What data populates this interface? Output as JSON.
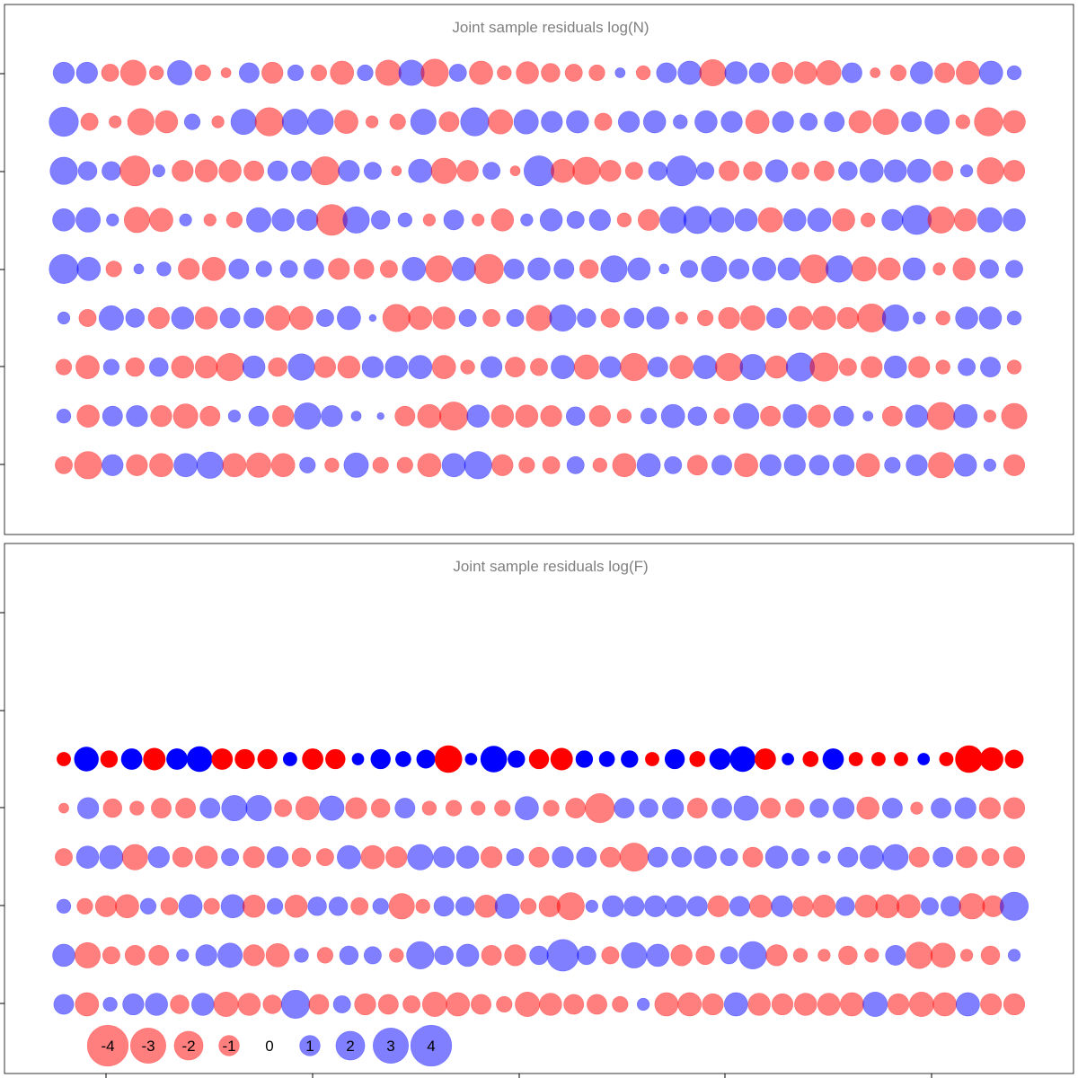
{
  "chart_data": {
    "type": "scatter",
    "description_type": "bubble residual plot",
    "colors": {
      "negative": "#ff0000",
      "positive": "#0000ff",
      "zero_label": "#000000"
    },
    "panels": [
      {
        "title": "Joint sample residuals log(N)",
        "fill_opacity": 0.5,
        "n_columns": 47,
        "rows": [
          [
            0.9,
            0.9,
            -0.6,
            -1.3,
            -0.4,
            1.2,
            -0.5,
            -0.2,
            0.8,
            -0.9,
            0.5,
            -0.5,
            -1.1,
            0.5,
            -1.3,
            1.3,
            -1.5,
            0.6,
            -1.1,
            -0.4,
            -1.0,
            -0.7,
            -0.6,
            -0.5,
            0.2,
            -0.4,
            0.8,
            1.1,
            -1.4,
            1.0,
            0.8,
            -0.9,
            -1.0,
            -1.2,
            0.8,
            -0.2,
            -0.5,
            1.0,
            -0.8,
            -1.1,
            1.1,
            0.4
          ],
          [
            1.7,
            -0.6,
            -0.3,
            -1.4,
            -1.0,
            0.5,
            -0.3,
            1.3,
            -1.6,
            1.3,
            1.3,
            -1.1,
            -0.3,
            -0.5,
            1.3,
            -0.8,
            1.6,
            -1.2,
            1.2,
            0.9,
            1.0,
            -0.6,
            0.9,
            1.0,
            0.4,
            1.0,
            0.9,
            -1.1,
            0.9,
            0.6,
            0.8,
            -1.0,
            -1.3,
            0.8,
            1.2,
            -0.4,
            -1.6,
            -1.0
          ],
          [
            1.5,
            0.7,
            0.7,
            -1.8,
            0.3,
            -0.9,
            -1.0,
            -1.0,
            -0.8,
            0.8,
            0.8,
            -1.6,
            0.9,
            0.6,
            -0.2,
            1.1,
            -1.3,
            -0.9,
            0.6,
            -0.2,
            1.8,
            -1.1,
            -1.5,
            -0.9,
            -0.6,
            0.7,
            1.8,
            0.6,
            -0.8,
            -0.7,
            1.0,
            -0.6,
            -0.8,
            0.7,
            1.1,
            1.0,
            1.1,
            -0.8,
            0.3,
            -1.4,
            -0.9
          ],
          [
            1.0,
            1.2,
            0.3,
            -1.3,
            -1.1,
            0.3,
            -0.3,
            -0.5,
            1.2,
            1.0,
            0.9,
            -1.9,
            1.4,
            0.7,
            0.4,
            -0.3,
            0.8,
            -0.3,
            -1.0,
            0.3,
            1.0,
            0.6,
            0.9,
            -0.4,
            -0.9,
            1.4,
            1.5,
            1.2,
            1.0,
            -1.2,
            1.0,
            1.1,
            -1.0,
            -0.4,
            0.9,
            1.7,
            -1.4,
            -1.0,
            1.2,
            1.0
          ],
          [
            1.7,
            1.1,
            -0.5,
            0.2,
            0.4,
            -0.9,
            -1.1,
            0.8,
            0.5,
            0.6,
            0.8,
            -0.9,
            -0.8,
            -0.6,
            1.1,
            -1.4,
            1.1,
            -1.7,
            0.8,
            1.0,
            0.8,
            -0.7,
            1.4,
            1.0,
            0.2,
            0.6,
            1.3,
            0.8,
            1.1,
            1.0,
            -1.6,
            1.4,
            -1.2,
            -1.0,
            1.0,
            -0.3,
            -1.0,
            0.7,
            0.6
          ],
          [
            0.3,
            -0.6,
            1.2,
            0.7,
            -0.9,
            1.0,
            -1.0,
            0.8,
            0.8,
            -1.2,
            -1.1,
            0.6,
            1.1,
            0.1,
            -1.5,
            -1.1,
            -1.0,
            0.6,
            -0.6,
            0.6,
            -1.3,
            1.4,
            0.7,
            -0.7,
            0.8,
            1.0,
            -0.3,
            -0.5,
            -0.9,
            -1.2,
            0.8,
            -1.1,
            -1.1,
            -0.9,
            -1.6,
            1.4,
            0.3,
            -0.4,
            1.0,
            1.0,
            0.4
          ],
          [
            -0.5,
            -1.1,
            0.5,
            -0.7,
            0.7,
            -1.0,
            -1.0,
            -1.5,
            1.0,
            -0.7,
            1.4,
            -0.9,
            -1.0,
            0.9,
            1.0,
            1.1,
            -1.1,
            -0.4,
            0.9,
            -0.8,
            -0.6,
            1.1,
            -1.2,
            0.9,
            -1.5,
            0.8,
            -1.1,
            1.1,
            -1.5,
            1.3,
            -1.0,
            1.6,
            -1.6,
            -0.6,
            -0.9,
            1.0,
            -0.9,
            -0.4,
            0.6,
            0.8,
            -0.4
          ],
          [
            0.4,
            -1.0,
            0.8,
            0.9,
            -0.9,
            -1.2,
            -0.8,
            0.3,
            0.8,
            -0.9,
            1.4,
            0.9,
            0.2,
            0.1,
            -0.8,
            -1.1,
            -1.6,
            1.0,
            -1.0,
            -1.0,
            -0.9,
            0.7,
            -0.9,
            -0.4,
            0.5,
            1.1,
            0.7,
            -0.5,
            1.3,
            -0.8,
            1.1,
            -1.0,
            0.8,
            0.2,
            -0.8,
            1.0,
            -1.5,
            1.1,
            -0.3,
            -1.3
          ],
          [
            -0.6,
            -1.5,
            0.9,
            -0.9,
            -1.1,
            1.1,
            1.4,
            -1.1,
            -1.2,
            -1.1,
            0.5,
            -0.4,
            1.2,
            -0.5,
            -0.5,
            -1.1,
            1.1,
            1.5,
            -0.9,
            -0.5,
            -0.6,
            0.6,
            -0.4,
            -1.1,
            1.1,
            0.6,
            -0.8,
            0.8,
            -1.1,
            0.9,
            0.9,
            0.8,
            0.9,
            -1.1,
            0.5,
            0.9,
            -1.3,
            1.0,
            0.3,
            -0.9
          ]
        ]
      },
      {
        "title": "Joint sample residuals log(F)",
        "fill_opacity_rows": [
          1.0,
          0.5,
          0.5,
          0.5,
          0.5,
          0.5
        ],
        "n_columns": 47,
        "rows": [
          [
            -0.4,
            1.2,
            -0.6,
            0.9,
            -1.0,
            0.9,
            1.3,
            -0.9,
            -0.8,
            -0.8,
            0.4,
            -0.9,
            -0.8,
            0.3,
            0.8,
            0.5,
            0.7,
            -1.5,
            0.3,
            1.4,
            0.6,
            -0.8,
            -1.0,
            0.6,
            0.5,
            0.6,
            -0.4,
            0.8,
            -0.5,
            0.9,
            1.3,
            -0.9,
            0.3,
            -0.5,
            0.9,
            -0.4,
            -0.4,
            -0.4,
            0.3,
            -0.4,
            -1.5,
            -1.1,
            -0.7
          ],
          [
            -0.2,
            0.9,
            -0.7,
            -0.4,
            -0.8,
            -0.8,
            0.8,
            1.3,
            1.3,
            -0.6,
            -1.1,
            1.2,
            -0.9,
            -0.7,
            0.8,
            -0.4,
            -0.5,
            -0.4,
            -0.5,
            1.1,
            -0.5,
            -0.8,
            -1.7,
            0.8,
            0.7,
            0.9,
            -0.8,
            0.8,
            1.2,
            -0.8,
            -0.7,
            0.7,
            0.9,
            -1.0,
            0.8,
            -0.3,
            0.8,
            0.9,
            -0.9,
            -0.9
          ],
          [
            -0.6,
            1.0,
            1.1,
            -1.3,
            0.9,
            -0.8,
            -1.0,
            0.6,
            -0.9,
            0.9,
            -0.7,
            -0.6,
            1.1,
            -1.1,
            -0.9,
            1.3,
            0.9,
            1.0,
            -0.9,
            0.6,
            -0.8,
            0.9,
            0.8,
            -0.8,
            -1.6,
            0.8,
            0.8,
            1.0,
            0.6,
            -0.8,
            1.0,
            0.6,
            0.3,
            0.8,
            1.1,
            1.3,
            -0.8,
            0.8,
            -0.9,
            -0.6,
            -0.9
          ],
          [
            0.4,
            -0.5,
            -0.9,
            -1.1,
            0.5,
            -0.6,
            1.1,
            -0.5,
            1.1,
            -1.0,
            0.5,
            -1.0,
            0.7,
            0.7,
            -0.6,
            0.5,
            -1.3,
            -0.4,
            0.8,
            0.7,
            -1.0,
            1.2,
            -0.5,
            -0.9,
            -1.5,
            0.3,
            0.9,
            0.8,
            0.9,
            0.9,
            0.8,
            -0.9,
            0.8,
            -1.0,
            0.9,
            -0.8,
            -1.0,
            0.7,
            -1.0,
            -1.1,
            -1.1,
            0.6,
            0.8,
            -1.3,
            -0.9,
            1.6
          ],
          [
            1.0,
            -1.3,
            -0.6,
            -0.8,
            -0.8,
            0.3,
            0.9,
            1.2,
            -0.9,
            -1.1,
            0.4,
            -0.5,
            0.7,
            0.6,
            -0.4,
            1.5,
            0.7,
            1.0,
            -0.8,
            -0.9,
            0.7,
            2.0,
            0.7,
            -0.6,
            1.3,
            1.0,
            -0.9,
            -0.7,
            0.6,
            1.5,
            -0.9,
            -0.4,
            -0.3,
            -0.7,
            -0.4,
            0.8,
            -1.4,
            -1.2,
            -0.3,
            -0.7,
            0.3
          ],
          [
            0.8,
            -1.1,
            0.4,
            0.9,
            1.0,
            -0.7,
            1.0,
            -1.2,
            -1.0,
            -0.7,
            1.6,
            -0.8,
            0.6,
            -0.9,
            -0.8,
            -0.6,
            -1.2,
            -1.1,
            -0.8,
            -0.5,
            -1.2,
            -1.0,
            -0.8,
            -0.8,
            -0.5,
            0.3,
            -1.1,
            -1.1,
            -0.9,
            1.1,
            -1.0,
            -0.9,
            -1.0,
            -1.0,
            -1.1,
            1.2,
            -0.9,
            -1.2,
            -1.1,
            1.1,
            -0.9,
            -0.9
          ]
        ]
      }
    ],
    "legend": {
      "values": [
        -4,
        -3,
        -2,
        -1,
        0,
        1,
        2,
        3,
        4
      ],
      "labels": [
        "-4",
        "-3",
        "-2",
        "-1",
        "0",
        "1",
        "2",
        "3",
        "4"
      ]
    },
    "grid": false
  }
}
